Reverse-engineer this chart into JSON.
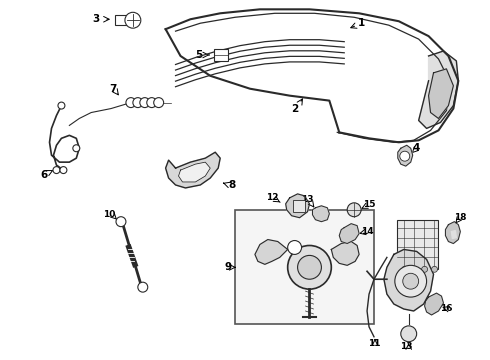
{
  "background_color": "#ffffff",
  "line_color": "#2a2a2a",
  "text_color": "#000000",
  "fig_width": 4.9,
  "fig_height": 3.6,
  "dpi": 100
}
